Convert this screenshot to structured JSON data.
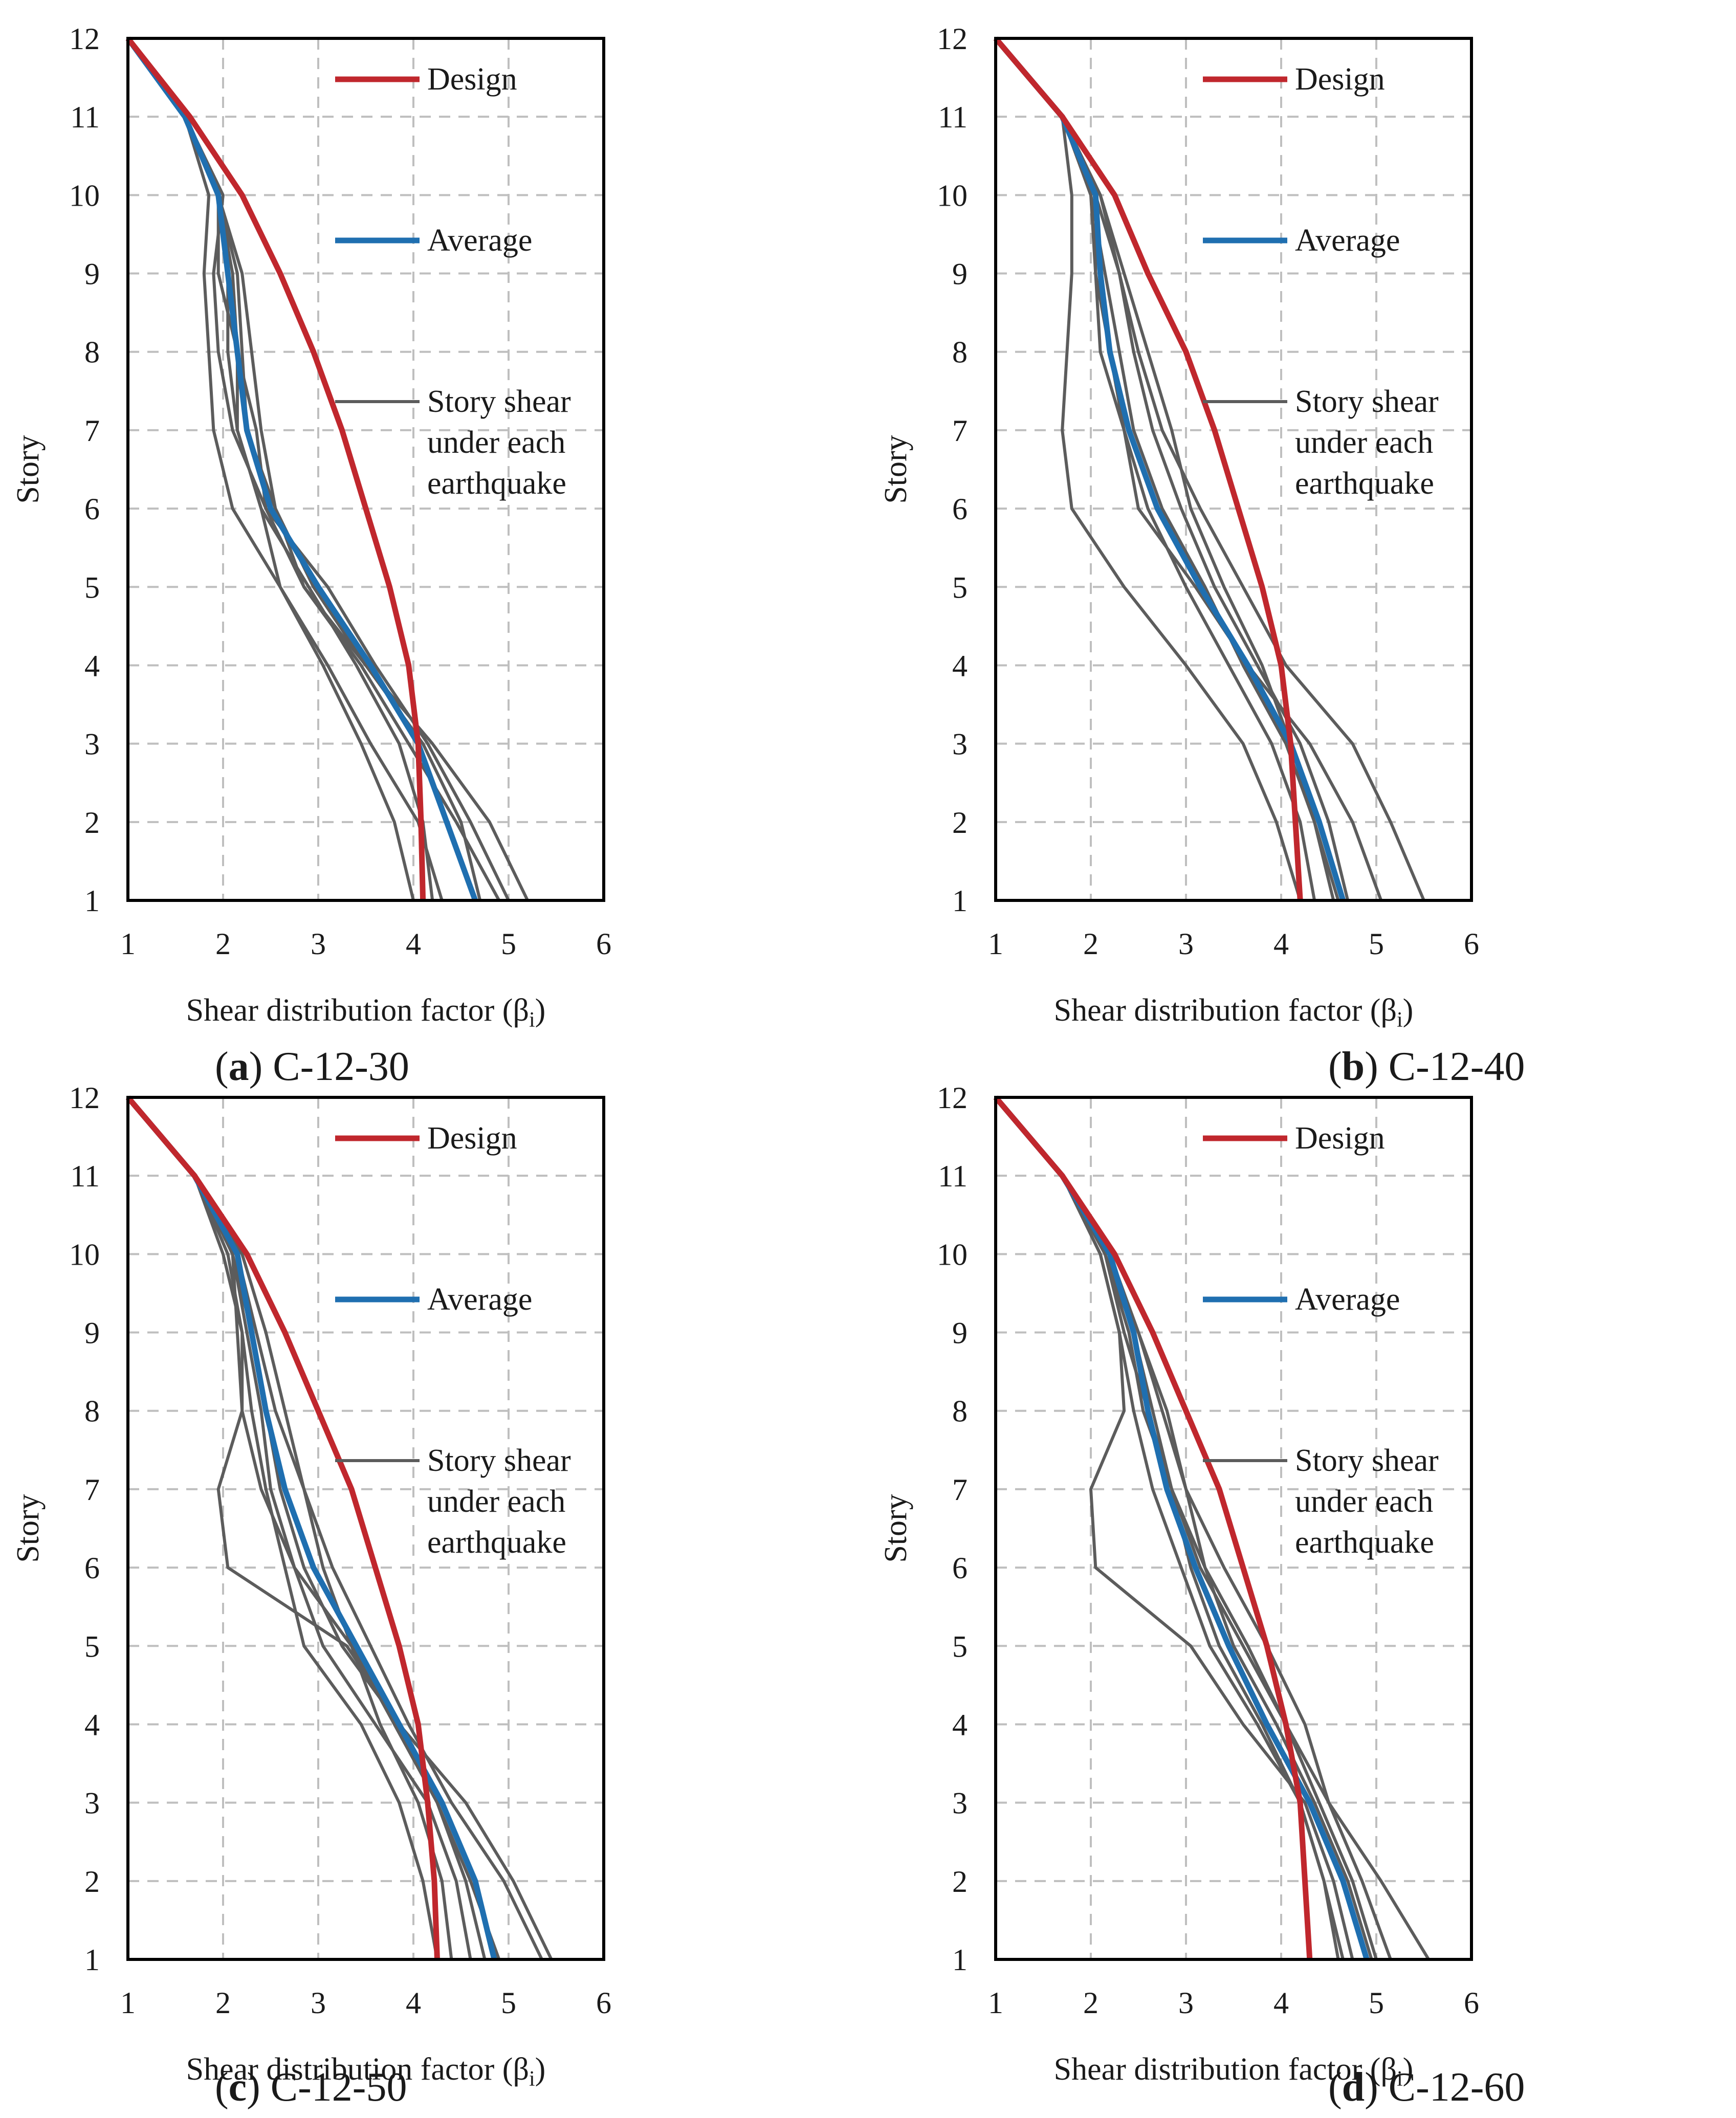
{
  "figure": {
    "colors": {
      "design": "#c0272d",
      "average": "#1f6fb0",
      "earthquake": "#5c5c5c",
      "grid": "#bfbfbf",
      "frame": "#000000"
    },
    "legend": {
      "design": "Design",
      "average": "Average",
      "earthquake": [
        "Story shear",
        "under each",
        "earthquake"
      ]
    }
  },
  "chart_data": [
    {
      "type": "line",
      "panel_letter": "a",
      "panel_name": "C-12-30",
      "xlabel": "Shear distribution factor (β",
      "xlabel_sub": "i",
      "xlabel_close": ")",
      "ylabel": "Story",
      "xlim": [
        1,
        6
      ],
      "ylim": [
        1,
        12
      ],
      "xticks": [
        "1",
        "2",
        "3",
        "4",
        "5",
        "6"
      ],
      "yticks": [
        "1",
        "2",
        "3",
        "4",
        "5",
        "6",
        "7",
        "8",
        "9",
        "10",
        "11",
        "12"
      ],
      "stories": [
        1,
        2,
        3,
        4,
        5,
        6,
        7,
        8,
        9,
        10,
        11,
        12
      ],
      "design": [
        4.1,
        4.08,
        4.05,
        3.95,
        3.75,
        3.5,
        3.25,
        2.95,
        2.6,
        2.2,
        1.65,
        1.0
      ],
      "average": [
        4.65,
        4.35,
        4.05,
        3.55,
        3.0,
        2.5,
        2.25,
        2.15,
        2.05,
        1.95,
        1.6,
        1.0
      ],
      "earthquakes": [
        [
          4.2,
          4.1,
          3.85,
          3.4,
          2.9,
          2.4,
          2.15,
          2.05,
          2.05,
          1.95,
          1.6,
          1.0
        ],
        [
          5.2,
          4.8,
          4.2,
          3.5,
          2.95,
          2.55,
          2.4,
          2.3,
          2.2,
          1.95,
          1.6,
          1.0
        ],
        [
          4.3,
          4.05,
          3.55,
          3.1,
          2.6,
          2.1,
          1.9,
          1.85,
          1.8,
          1.85,
          1.6,
          1.0
        ],
        [
          5.0,
          4.6,
          4.15,
          3.6,
          3.1,
          2.45,
          2.35,
          2.15,
          2.1,
          1.95,
          1.6,
          1.0
        ],
        [
          4.7,
          4.5,
          4.1,
          3.5,
          2.85,
          2.45,
          2.1,
          1.95,
          1.9,
          2.0,
          1.6,
          1.0
        ],
        [
          4.9,
          4.45,
          3.95,
          3.45,
          2.85,
          2.55,
          2.25,
          2.2,
          2.15,
          1.95,
          1.6,
          1.0
        ],
        [
          4.0,
          3.8,
          3.45,
          3.05,
          2.6,
          2.4,
          2.15,
          2.15,
          1.95,
          1.95,
          1.6,
          1.0
        ]
      ]
    },
    {
      "type": "line",
      "panel_letter": "b",
      "panel_name": "C-12-40",
      "xlabel": "Shear distribution factor (β",
      "xlabel_sub": "i",
      "xlabel_close": ")",
      "ylabel": "Story",
      "xlim": [
        1,
        6
      ],
      "ylim": [
        1,
        12
      ],
      "xticks": [
        "1",
        "2",
        "3",
        "4",
        "5",
        "6"
      ],
      "yticks": [
        "1",
        "2",
        "3",
        "4",
        "5",
        "6",
        "7",
        "8",
        "9",
        "10",
        "11",
        "12"
      ],
      "stories": [
        1,
        2,
        3,
        4,
        5,
        6,
        7,
        8,
        9,
        10,
        11,
        12
      ],
      "design": [
        4.2,
        4.15,
        4.1,
        4.0,
        3.8,
        3.55,
        3.3,
        3.0,
        2.6,
        2.25,
        1.7,
        1.0
      ],
      "average": [
        4.65,
        4.4,
        4.1,
        3.65,
        3.15,
        2.7,
        2.4,
        2.2,
        2.1,
        2.05,
        1.7,
        1.0
      ],
      "earthquakes": [
        [
          5.5,
          5.15,
          4.75,
          4.05,
          3.6,
          3.15,
          2.75,
          2.5,
          2.3,
          2.05,
          1.7,
          1.0
        ],
        [
          4.35,
          4.2,
          3.9,
          3.45,
          3.0,
          2.6,
          2.35,
          2.2,
          2.05,
          2.0,
          1.7,
          1.0
        ],
        [
          4.7,
          4.5,
          4.2,
          3.75,
          3.3,
          2.95,
          2.65,
          2.45,
          2.3,
          2.1,
          1.7,
          1.0
        ],
        [
          5.05,
          4.75,
          4.3,
          3.65,
          3.1,
          2.5,
          2.35,
          2.1,
          2.05,
          2.05,
          1.7,
          1.0
        ],
        [
          4.2,
          3.95,
          3.6,
          3.0,
          2.35,
          1.8,
          1.7,
          1.75,
          1.8,
          1.8,
          1.7,
          1.0
        ],
        [
          4.6,
          4.35,
          4.05,
          3.6,
          3.2,
          2.75,
          2.45,
          2.3,
          2.15,
          2.0,
          1.7,
          1.0
        ],
        [
          4.55,
          4.35,
          4.1,
          3.8,
          3.4,
          3.05,
          2.85,
          2.6,
          2.35,
          2.1,
          1.7,
          1.0
        ]
      ]
    },
    {
      "type": "line",
      "panel_letter": "c",
      "panel_name": "C-12-50",
      "xlabel": "Shear distribution factor (β",
      "xlabel_sub": "i",
      "xlabel_close": ")",
      "ylabel": "Story",
      "xlim": [
        1,
        6
      ],
      "ylim": [
        1,
        12
      ],
      "xticks": [
        "1",
        "2",
        "3",
        "4",
        "5",
        "6"
      ],
      "yticks": [
        "1",
        "2",
        "3",
        "4",
        "5",
        "6",
        "7",
        "8",
        "9",
        "10",
        "11",
        "12"
      ],
      "stories": [
        1,
        2,
        3,
        4,
        5,
        6,
        7,
        8,
        9,
        10,
        11,
        12
      ],
      "design": [
        4.25,
        4.22,
        4.15,
        4.05,
        3.85,
        3.6,
        3.35,
        3.0,
        2.65,
        2.25,
        1.7,
        1.0
      ],
      "average": [
        4.85,
        4.65,
        4.3,
        3.85,
        3.4,
        2.95,
        2.65,
        2.45,
        2.3,
        2.15,
        1.7,
        1.0
      ],
      "earthquakes": [
        [
          5.45,
          5.05,
          4.55,
          3.85,
          3.25,
          2.85,
          2.6,
          2.45,
          2.3,
          2.1,
          1.7,
          1.0
        ],
        [
          4.4,
          4.3,
          4.05,
          3.65,
          3.35,
          3.05,
          2.85,
          2.65,
          2.45,
          2.2,
          1.7,
          1.0
        ],
        [
          5.35,
          4.95,
          4.4,
          3.95,
          3.55,
          3.15,
          2.85,
          2.55,
          2.35,
          2.15,
          1.7,
          1.0
        ],
        [
          4.75,
          4.55,
          4.25,
          3.85,
          3.3,
          2.05,
          1.95,
          2.2,
          2.15,
          2.1,
          1.7,
          1.0
        ],
        [
          4.6,
          4.45,
          4.15,
          3.6,
          3.05,
          2.75,
          2.5,
          2.4,
          2.25,
          2.1,
          1.7,
          1.0
        ],
        [
          4.9,
          4.6,
          4.25,
          3.8,
          3.35,
          2.75,
          2.4,
          2.2,
          2.2,
          2.05,
          1.7,
          1.0
        ],
        [
          4.25,
          4.1,
          3.85,
          3.45,
          2.85,
          2.65,
          2.45,
          2.3,
          2.2,
          2.0,
          1.7,
          1.0
        ]
      ]
    },
    {
      "type": "line",
      "panel_letter": "d",
      "panel_name": "C-12-60",
      "xlabel": "Shear distribution factor (β",
      "xlabel_sub": "i",
      "xlabel_close": ")",
      "ylabel": "Story",
      "xlim": [
        1,
        6
      ],
      "ylim": [
        1,
        12
      ],
      "xticks": [
        "1",
        "2",
        "3",
        "4",
        "5",
        "6"
      ],
      "yticks": [
        "1",
        "2",
        "3",
        "4",
        "5",
        "6",
        "7",
        "8",
        "9",
        "10",
        "11",
        "12"
      ],
      "stories": [
        1,
        2,
        3,
        4,
        5,
        6,
        7,
        8,
        9,
        10,
        11,
        12
      ],
      "design": [
        4.3,
        4.25,
        4.2,
        4.05,
        3.85,
        3.6,
        3.35,
        3.0,
        2.65,
        2.25,
        1.7,
        1.0
      ],
      "average": [
        4.9,
        4.65,
        4.3,
        3.85,
        3.45,
        3.1,
        2.8,
        2.6,
        2.45,
        2.2,
        1.7,
        1.0
      ],
      "earthquakes": [
        [
          5.55,
          5.05,
          4.5,
          4.05,
          3.6,
          3.15,
          2.85,
          2.65,
          2.45,
          2.15,
          1.7,
          1.0
        ],
        [
          4.6,
          4.45,
          4.2,
          3.75,
          3.25,
          2.95,
          2.65,
          2.45,
          2.3,
          2.1,
          1.7,
          1.0
        ],
        [
          5.15,
          4.85,
          4.5,
          4.25,
          3.85,
          3.4,
          3.0,
          2.75,
          2.5,
          2.2,
          1.7,
          1.0
        ],
        [
          4.75,
          4.55,
          4.25,
          3.6,
          3.05,
          2.05,
          2.0,
          2.35,
          2.3,
          2.1,
          1.7,
          1.0
        ],
        [
          5.0,
          4.75,
          4.4,
          4.05,
          3.65,
          3.2,
          2.85,
          2.55,
          2.4,
          2.15,
          1.7,
          1.0
        ],
        [
          4.65,
          4.45,
          4.2,
          3.8,
          3.35,
          3.05,
          2.85,
          2.6,
          2.35,
          2.15,
          1.7,
          1.0
        ],
        [
          4.95,
          4.7,
          4.35,
          3.95,
          3.5,
          3.2,
          3.0,
          2.8,
          2.5,
          2.2,
          1.7,
          1.0
        ]
      ]
    }
  ]
}
